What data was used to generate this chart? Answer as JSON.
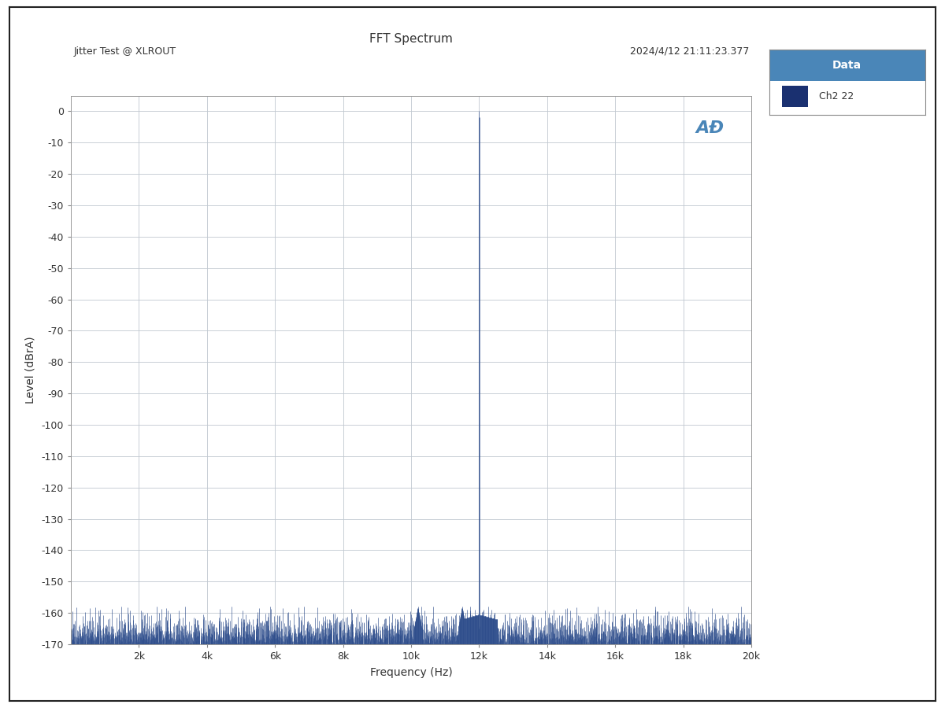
{
  "title": "FFT Spectrum",
  "subtitle_left": "Jitter Test @ XLROUT",
  "subtitle_right": "2024/4/12 21:11:23.377",
  "xlabel": "Frequency (Hz)",
  "ylabel": "Level (dBrA)",
  "xlim": [
    0,
    20000
  ],
  "ylim": [
    -170,
    5
  ],
  "yticks": [
    0,
    -10,
    -20,
    -30,
    -40,
    -50,
    -60,
    -70,
    -80,
    -90,
    -100,
    -110,
    -120,
    -130,
    -140,
    -150,
    -160,
    -170
  ],
  "xtick_positions": [
    2000,
    4000,
    6000,
    8000,
    10000,
    12000,
    14000,
    16000,
    18000,
    20000
  ],
  "xtick_labels": [
    "2k",
    "4k",
    "6k",
    "8k",
    "10k",
    "12k",
    "14k",
    "16k",
    "18k",
    "20k"
  ],
  "line_color": "#2a4a8a",
  "noise_floor": -168,
  "signal_freq": 12000,
  "signal_level": 0,
  "legend_title": "Data",
  "legend_label": "Ch2 22",
  "legend_title_bg": "#4a86b8",
  "legend_square_color": "#1a3070",
  "bg_color": "#ffffff",
  "grid_color": "#c0c8d0",
  "outer_bg": "#ffffff",
  "ap_logo_color": "#4a86b8"
}
